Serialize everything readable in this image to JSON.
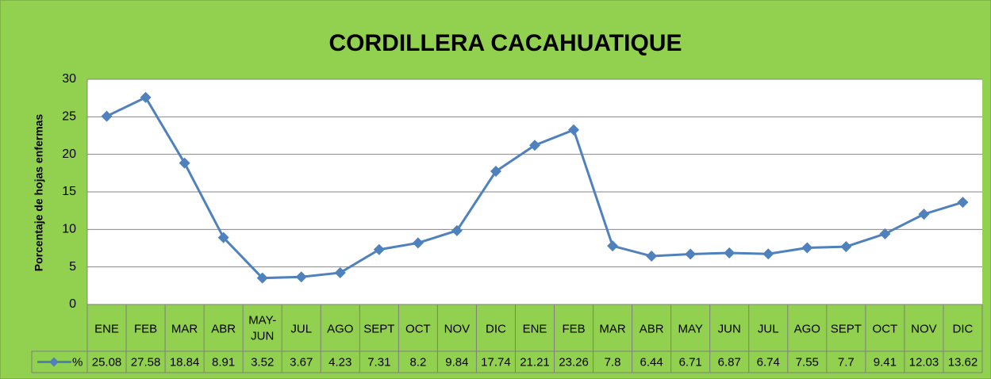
{
  "chart_data": {
    "type": "line",
    "title": "CORDILLERA CACAHUATIQUE",
    "y_label": "Porcentaje de hojas enfermas",
    "categories": [
      "ENE",
      "FEB",
      "MAR",
      "ABR",
      "MAY-JUN",
      "JUL",
      "AGO",
      "SEPT",
      "OCT",
      "NOV",
      "DIC",
      "ENE",
      "FEB",
      "MAR",
      "ABR",
      "MAY",
      "JUN",
      "JUL",
      "AGO",
      "SEPT",
      "OCT",
      "NOV",
      "DIC"
    ],
    "series": [
      {
        "name": "%",
        "color": "#4f81bd",
        "values": [
          25.08,
          27.58,
          18.84,
          8.91,
          3.52,
          3.67,
          4.23,
          7.31,
          8.2,
          9.84,
          17.74,
          21.21,
          23.26,
          7.8,
          6.44,
          6.71,
          6.87,
          6.74,
          7.55,
          7.7,
          9.41,
          12.03,
          13.62
        ]
      }
    ],
    "ylim": [
      0,
      30
    ],
    "yticks": [
      0,
      5,
      10,
      15,
      20,
      25,
      30
    ],
    "grid": true,
    "data_table": true
  }
}
